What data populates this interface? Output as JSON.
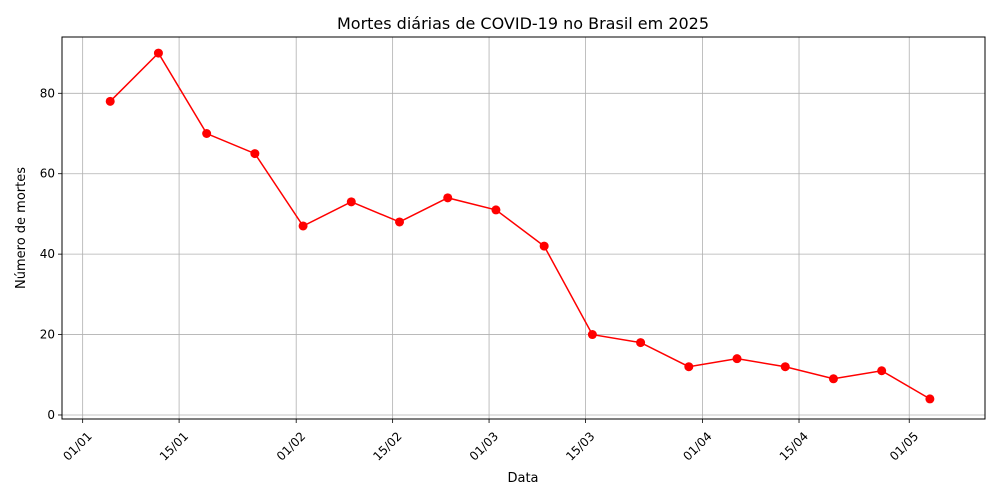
{
  "chart_data": {
    "type": "line",
    "title": "Mortes diárias de COVID-19 no Brasil em 2025",
    "xlabel": "Data",
    "ylabel": "Número de mortes",
    "x_axis_type": "date",
    "xlim": [
      "2024-12-29",
      "2025-05-12"
    ],
    "ylim": [
      -1,
      94
    ],
    "x_ticks": [
      {
        "date": "2025-01-01",
        "label": "01/01"
      },
      {
        "date": "2025-01-15",
        "label": "15/01"
      },
      {
        "date": "2025-02-01",
        "label": "01/02"
      },
      {
        "date": "2025-02-15",
        "label": "15/02"
      },
      {
        "date": "2025-03-01",
        "label": "01/03"
      },
      {
        "date": "2025-03-15",
        "label": "15/03"
      },
      {
        "date": "2025-04-01",
        "label": "01/04"
      },
      {
        "date": "2025-04-15",
        "label": "15/04"
      },
      {
        "date": "2025-05-01",
        "label": "01/05"
      }
    ],
    "y_ticks": [
      0,
      20,
      40,
      60,
      80
    ],
    "grid": true,
    "legend": "none",
    "series": [
      {
        "color": "#ff0000",
        "marker": "circle",
        "x": [
          "2025-01-05",
          "2025-01-12",
          "2025-01-19",
          "2025-01-26",
          "2025-02-02",
          "2025-02-09",
          "2025-02-16",
          "2025-02-23",
          "2025-03-02",
          "2025-03-09",
          "2025-03-16",
          "2025-03-23",
          "2025-03-30",
          "2025-04-06",
          "2025-04-13",
          "2025-04-20",
          "2025-04-27",
          "2025-05-04"
        ],
        "values": [
          78,
          90,
          70,
          65,
          47,
          53,
          48,
          54,
          51,
          42,
          20,
          18,
          12,
          14,
          12,
          9,
          11,
          4
        ]
      }
    ]
  }
}
